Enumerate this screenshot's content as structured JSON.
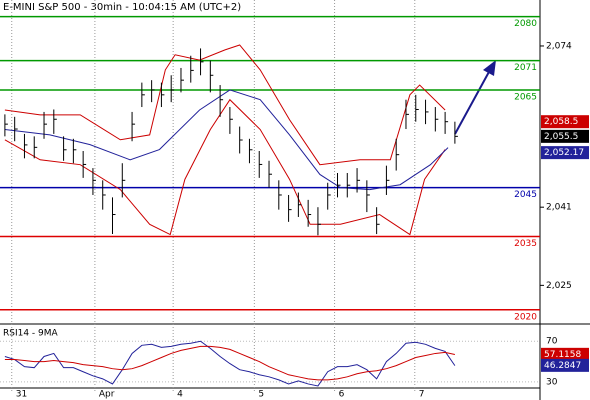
{
  "chart_data": [
    {
      "type": "ohlc",
      "title": "E-MINI S&P 500 - 30min - 10:04:15 AM (UTC+2)",
      "xlim": [
        -0.5,
        54.7
      ],
      "ylim": [
        2017.5,
        2083
      ],
      "yticks": [
        {
          "value": 2074,
          "label": "2,074"
        },
        {
          "value": 2041,
          "label": "2,041"
        },
        {
          "value": 2025,
          "label": "2,025"
        }
      ],
      "xticks": [
        {
          "value": 0.7,
          "label": "31"
        },
        {
          "value": 9.2,
          "label": "Apr"
        },
        {
          "value": 17.2,
          "label": "4"
        },
        {
          "value": 25.5,
          "label": "5"
        },
        {
          "value": 33.7,
          "label": "6"
        },
        {
          "value": 41.9,
          "label": "7"
        }
      ],
      "levels": [
        2080,
        2071,
        2065,
        2045,
        2035,
        2020
      ],
      "level_colors": [
        "#009900",
        "#009900",
        "#009900",
        "#0000aa",
        "#dd0000",
        "#dd0000"
      ],
      "bars": {
        "color": "#000000",
        "x": [
          0,
          1,
          2,
          3,
          4,
          5,
          6,
          7,
          8,
          9,
          10,
          11,
          12,
          13,
          14,
          15,
          16,
          17,
          18,
          19,
          20,
          21,
          22,
          23,
          24,
          25,
          26,
          27,
          28,
          29,
          30,
          31,
          32,
          33,
          34,
          35,
          36,
          37,
          38,
          39,
          40,
          41,
          42,
          43,
          44,
          45,
          46
        ],
        "high": [
          2060,
          2059.5,
          2056,
          2055.5,
          2060.5,
          2061,
          2055.5,
          2055,
          2052.5,
          2049,
          2046.5,
          2043,
          2050,
          2060.5,
          2066.5,
          2067,
          2066.5,
          2068,
          2069.5,
          2072,
          2073.5,
          2071,
          2066,
          2061.5,
          2057.5,
          2055,
          2052.5,
          2050.5,
          2046.5,
          2043.5,
          2044,
          2042.5,
          2041,
          2046,
          2048,
          2048,
          2049,
          2046.5,
          2041,
          2049.5,
          2055,
          2063,
          2064,
          2063,
          2061.5,
          2060.5,
          2058.5
        ],
        "low": [
          2055.5,
          2054.5,
          2051,
          2051,
          2055,
          2056,
          2050.5,
          2050,
          2047,
          2043.5,
          2040.5,
          2035.5,
          2043,
          2054.5,
          2061.5,
          2062.5,
          2061.5,
          2062.5,
          2064.5,
          2066.5,
          2068,
          2064.5,
          2059.5,
          2056,
          2052,
          2050,
          2047,
          2045,
          2040.5,
          2038,
          2039,
          2037,
          2035.25,
          2040.5,
          2043,
          2043,
          2044,
          2040,
          2035.5,
          2043.5,
          2048.5,
          2057,
          2058.5,
          2058,
          2056.5,
          2056,
          2054
        ],
        "close": [
          2058,
          2057,
          2053.75,
          2053.25,
          2058,
          2059,
          2052.75,
          2052.75,
          2049.75,
          2046.5,
          2043.5,
          2039.5,
          2046.5,
          2058,
          2064,
          2065,
          2064,
          2065,
          2067,
          2069,
          2070.75,
          2068,
          2063,
          2059,
          2054.75,
          2052.75,
          2049.75,
          2047.75,
          2043.5,
          2040.5,
          2041.5,
          2039.5,
          2037.5,
          2043.5,
          2045.5,
          2045.5,
          2046.5,
          2043.5,
          2037.5,
          2046.5,
          2051.75,
          2060,
          2061,
          2060.5,
          2059,
          2058.5,
          2055.5
        ],
        "last_value": {
          "value": 2055.5,
          "label": "2,055.5"
        }
      },
      "overlays": [
        {
          "color": "#cc0000",
          "x": [
            0,
            3.6,
            7.7,
            11.8,
            14.8,
            16.4,
            17.4,
            19.9,
            22.5,
            24,
            26.1,
            29.1,
            32.2,
            36.3,
            39.4,
            41.4,
            42.4,
            45
          ],
          "values": [
            2060.9,
            2059.9,
            2059.9,
            2054.8,
            2055.8,
            2069.1,
            2072.2,
            2071.1,
            2073.2,
            2074.2,
            2069.1,
            2058.9,
            2049.7,
            2050.7,
            2050.7,
            2064,
            2066,
            2060.9
          ],
          "last_value": {
            "value": 2058.5,
            "label": "2,058.5"
          }
        },
        {
          "color": "#cc0000",
          "x": [
            0,
            3.6,
            7.7,
            11.8,
            14.8,
            16.9,
            18.4,
            21,
            23,
            26.1,
            29.1,
            31.2,
            34.3,
            38.3,
            41.4,
            42.9,
            45
          ],
          "values": [
            2054.8,
            2050.7,
            2049.7,
            2044.6,
            2037.5,
            2035.4,
            2046.7,
            2056.9,
            2063,
            2056.9,
            2046.7,
            2037.5,
            2037.5,
            2039.5,
            2035.4,
            2046.7,
            2052.8
          ]
        },
        {
          "color": "#22229a",
          "x": [
            0,
            4.6,
            8.7,
            12.8,
            15.8,
            19.9,
            23,
            26.1,
            29.1,
            32.2,
            34.3,
            37.3,
            40.4,
            43.5,
            45.3
          ],
          "values": [
            2056.9,
            2055.8,
            2053.8,
            2050.7,
            2052.8,
            2060.9,
            2065,
            2063,
            2055.8,
            2047.7,
            2045,
            2044.6,
            2045.6,
            2049.7,
            2053.2
          ],
          "last_value": {
            "value": 2052.17,
            "label": "2,052.17"
          }
        }
      ]
    },
    {
      "type": "line",
      "title": "RSI14 - 9MA",
      "xlim": [
        -0.5,
        54.7
      ],
      "ylim": [
        24,
        85
      ],
      "yticks": [
        70,
        30
      ],
      "x": [
        0,
        1,
        2,
        3,
        4,
        5,
        6,
        7,
        8,
        9,
        10,
        11,
        12,
        13,
        14,
        15,
        16,
        17,
        18,
        19,
        20,
        21,
        22,
        23,
        24,
        25,
        26,
        27,
        28,
        29,
        30,
        31,
        32,
        33,
        34,
        35,
        36,
        37,
        38,
        39,
        40,
        41,
        42,
        43,
        44,
        45,
        46
      ],
      "series": [
        {
          "color": "#22229a",
          "values": [
            55,
            52,
            45,
            44,
            55,
            58,
            44,
            44,
            40,
            36,
            33,
            28,
            42,
            58,
            66,
            67,
            64,
            65,
            67,
            68,
            70,
            63,
            55,
            48,
            42,
            40,
            37,
            35,
            32,
            28,
            31,
            28,
            26,
            40,
            45,
            45,
            47,
            42,
            33,
            50,
            58,
            68,
            69,
            67,
            63,
            60,
            46
          ],
          "last_value": 46.2847
        },
        {
          "color": "#cc0000",
          "values": [
            52,
            52,
            51,
            50,
            50,
            51,
            50,
            49,
            47,
            46,
            45,
            43,
            42,
            43,
            46,
            50,
            54,
            58,
            61,
            63,
            65,
            65,
            64,
            62,
            58,
            54,
            50,
            45,
            41,
            37,
            35,
            33,
            32,
            32,
            33,
            35,
            38,
            40,
            41,
            43,
            46,
            50,
            54,
            56,
            58,
            59,
            57
          ],
          "last_value": 57.1158
        }
      ]
    }
  ]
}
